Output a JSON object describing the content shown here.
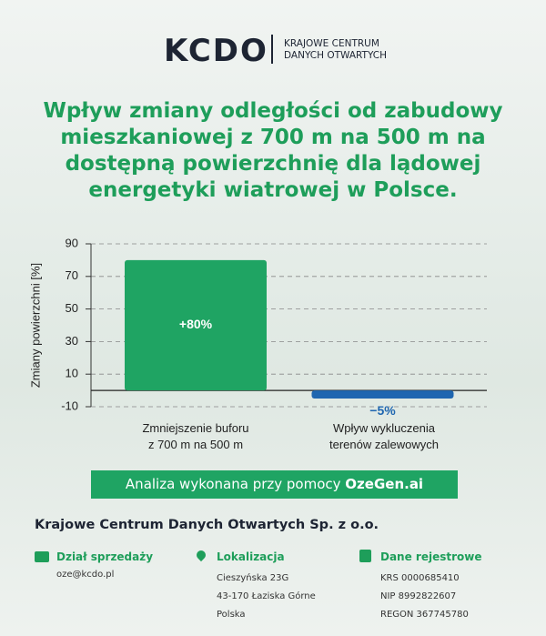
{
  "header": {
    "logo": "KCDO",
    "org_lines": [
      "KRAJOWE CENTRUM",
      "DANYCH OTWARTYCH"
    ]
  },
  "chart_data": {
    "type": "bar",
    "title": "Wpływ zmiany odległości od zabudowy mieszkaniowej z 700 m na 500 m na dostępną powierzchnię dla lądowej energetyki wiatrowej w Polsce.",
    "y_label": "Zmiany powierzchni [%]",
    "categories": [
      "Zmniejszenie buforu z 700 m na 500 m",
      "Wpływ wykluczenia terenów zalewowych"
    ],
    "values": [
      80,
      -5
    ],
    "value_labels": [
      "+80%",
      "−5%"
    ],
    "colors": [
      "#1fa463",
      "#1f66b0"
    ],
    "ylim": [
      -10,
      90
    ],
    "yticks": [
      -10,
      10,
      30,
      50,
      70,
      90
    ],
    "grid": true
  },
  "banner": {
    "text": "Analiza wykonana przy pomocy",
    "brand": "OzeGen.ai"
  },
  "footer": {
    "company": "Krajowe Centrum Danych Otwartych Sp. z o.o.",
    "columns": [
      {
        "title": "Dział sprzedaży",
        "lines": [
          "oze@kcdo.pl"
        ]
      },
      {
        "title": "Lokalizacja",
        "lines": [
          "Cieszyńska 23G",
          "43-170 Łaziska Górne",
          "Polska"
        ]
      },
      {
        "title": "Dane rejestrowe",
        "lines": [
          "KRS 0000685410",
          "NIP 8992822607",
          "REGON 367745780"
        ]
      }
    ]
  }
}
